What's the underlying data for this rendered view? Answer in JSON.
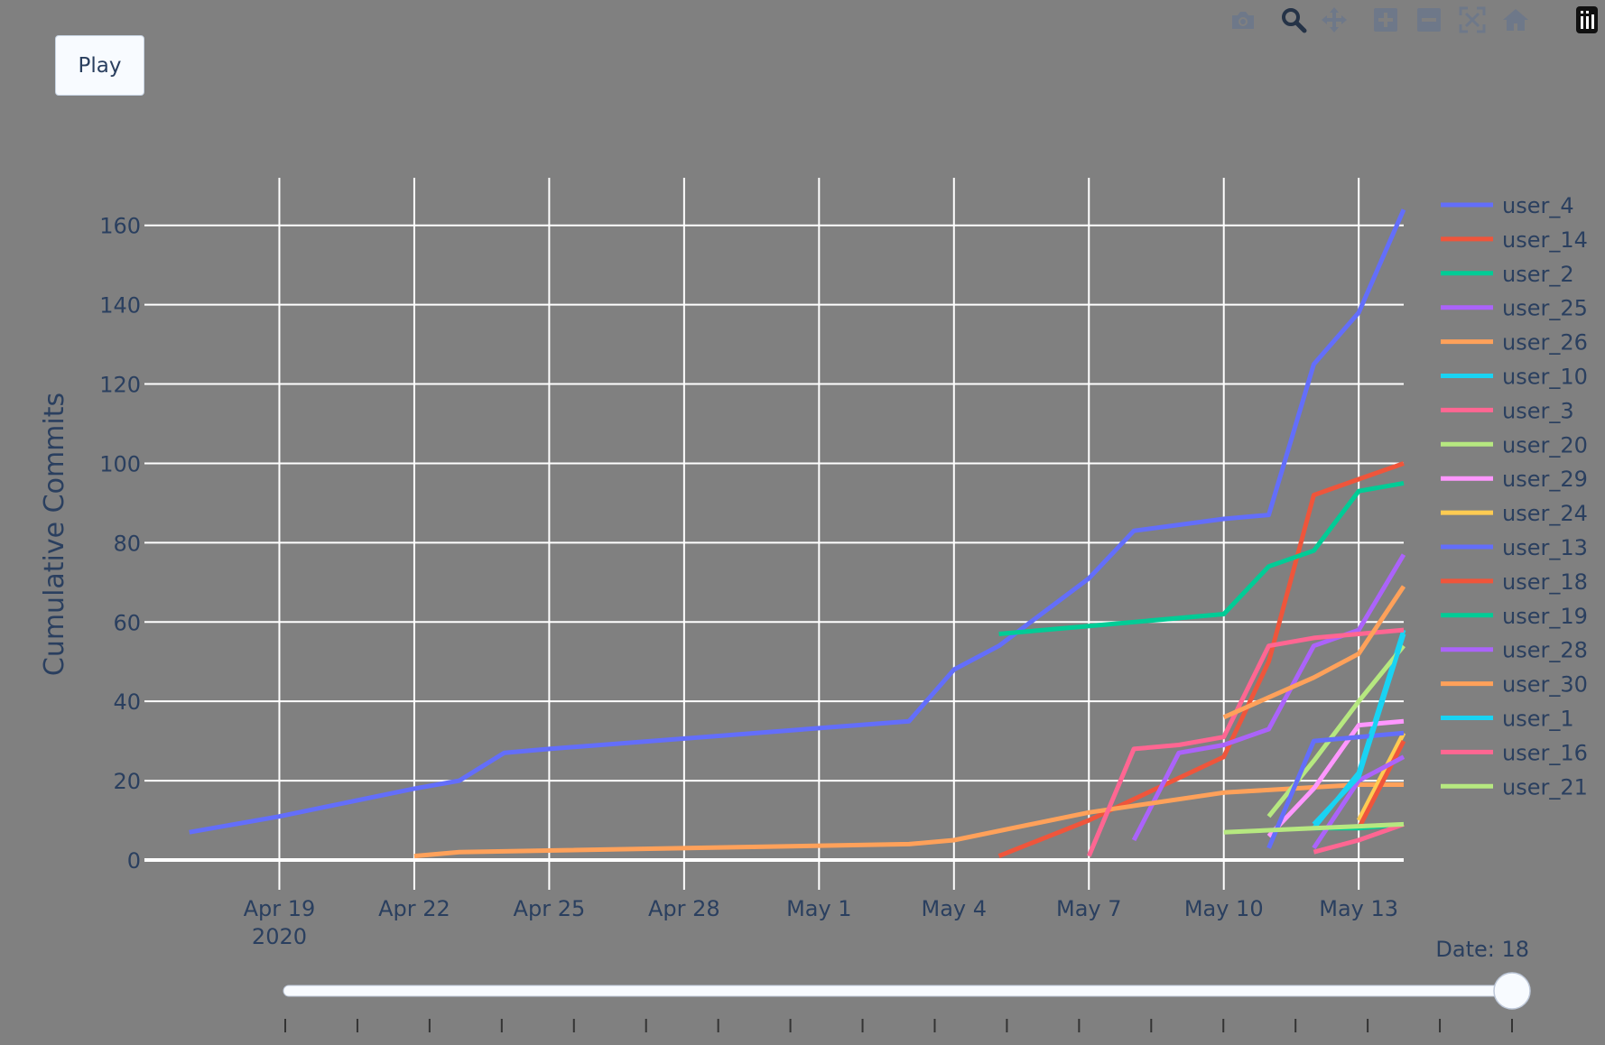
{
  "play_button": {
    "label": "Play"
  },
  "modebar": {
    "icons": [
      "camera-icon",
      "zoom-icon",
      "pan-icon",
      "zoom-in-icon",
      "zoom-out-icon",
      "autoscale-icon",
      "reset-axes-icon",
      "plotly-logo-icon"
    ]
  },
  "slider": {
    "current_label": "Date: 18",
    "current_value": 18,
    "steps": [
      1,
      2,
      3,
      4,
      5,
      6,
      7,
      8,
      9,
      10,
      11,
      12,
      13,
      14,
      15,
      16,
      17,
      18
    ]
  },
  "chart_data": {
    "type": "line",
    "ylabel": "Cumulative Commits",
    "xlabel": "",
    "grid": true,
    "legend_position": "right",
    "xlim": [
      "2020-04-16",
      "2020-05-14"
    ],
    "ylim": [
      0,
      172
    ],
    "y_ticks": [
      0,
      20,
      40,
      60,
      80,
      100,
      120,
      140,
      160
    ],
    "x_ticks": [
      {
        "date": "2020-04-19",
        "label": "Apr 19",
        "sublabel": "2020"
      },
      {
        "date": "2020-04-22",
        "label": "Apr 22"
      },
      {
        "date": "2020-04-25",
        "label": "Apr 25"
      },
      {
        "date": "2020-04-28",
        "label": "Apr 28"
      },
      {
        "date": "2020-05-01",
        "label": "May 1"
      },
      {
        "date": "2020-05-04",
        "label": "May 4"
      },
      {
        "date": "2020-05-07",
        "label": "May 7"
      },
      {
        "date": "2020-05-10",
        "label": "May 10"
      },
      {
        "date": "2020-05-13",
        "label": "May 13"
      }
    ],
    "series": [
      {
        "name": "user_4",
        "color": "#636efa",
        "points": [
          [
            "2020-04-17",
            7
          ],
          [
            "2020-04-19",
            11
          ],
          [
            "2020-04-22",
            18
          ],
          [
            "2020-04-23",
            20
          ],
          [
            "2020-04-24",
            27
          ],
          [
            "2020-04-25",
            28
          ],
          [
            "2020-05-03",
            35
          ],
          [
            "2020-05-04",
            48
          ],
          [
            "2020-05-05",
            54
          ],
          [
            "2020-05-07",
            71
          ],
          [
            "2020-05-08",
            83
          ],
          [
            "2020-05-10",
            86
          ],
          [
            "2020-05-11",
            87
          ],
          [
            "2020-05-12",
            125
          ],
          [
            "2020-05-13",
            138
          ],
          [
            "2020-05-14",
            164
          ]
        ]
      },
      {
        "name": "user_14",
        "color": "#ef553b",
        "points": [
          [
            "2020-05-05",
            1
          ],
          [
            "2020-05-07",
            10
          ],
          [
            "2020-05-10",
            26
          ],
          [
            "2020-05-11",
            50
          ],
          [
            "2020-05-12",
            92
          ],
          [
            "2020-05-13",
            96
          ],
          [
            "2020-05-14",
            100
          ]
        ]
      },
      {
        "name": "user_2",
        "color": "#00cc96",
        "points": [
          [
            "2020-05-05",
            57
          ],
          [
            "2020-05-07",
            59
          ],
          [
            "2020-05-10",
            62
          ],
          [
            "2020-05-11",
            74
          ],
          [
            "2020-05-12",
            78
          ],
          [
            "2020-05-13",
            93
          ],
          [
            "2020-05-14",
            95
          ]
        ]
      },
      {
        "name": "user_25",
        "color": "#ab63fa",
        "points": [
          [
            "2020-05-08",
            5
          ],
          [
            "2020-05-09",
            27
          ],
          [
            "2020-05-10",
            29
          ],
          [
            "2020-05-11",
            33
          ],
          [
            "2020-05-12",
            54
          ],
          [
            "2020-05-13",
            58
          ],
          [
            "2020-05-14",
            77
          ]
        ]
      },
      {
        "name": "user_26",
        "color": "#ffa15a",
        "points": [
          [
            "2020-04-22",
            1
          ],
          [
            "2020-04-23",
            2
          ],
          [
            "2020-05-03",
            4
          ],
          [
            "2020-05-04",
            5
          ],
          [
            "2020-05-07",
            12
          ],
          [
            "2020-05-10",
            17
          ],
          [
            "2020-05-13",
            19
          ],
          [
            "2020-05-14",
            19
          ]
        ]
      },
      {
        "name": "user_10",
        "color": "#19d3f3",
        "points": [
          [
            "2020-05-12",
            8
          ],
          [
            "2020-05-13",
            22
          ],
          [
            "2020-05-14",
            58
          ]
        ]
      },
      {
        "name": "user_3",
        "color": "#ff6692",
        "points": [
          [
            "2020-05-07",
            1
          ],
          [
            "2020-05-08",
            28
          ],
          [
            "2020-05-09",
            29
          ],
          [
            "2020-05-10",
            31
          ],
          [
            "2020-05-11",
            54
          ],
          [
            "2020-05-12",
            56
          ],
          [
            "2020-05-13",
            57
          ],
          [
            "2020-05-14",
            58
          ]
        ]
      },
      {
        "name": "user_20",
        "color": "#b6e880",
        "points": [
          [
            "2020-05-11",
            11
          ],
          [
            "2020-05-12",
            25
          ],
          [
            "2020-05-13",
            40
          ],
          [
            "2020-05-14",
            54
          ]
        ]
      },
      {
        "name": "user_29",
        "color": "#ff97ff",
        "points": [
          [
            "2020-05-11",
            6
          ],
          [
            "2020-05-12",
            18
          ],
          [
            "2020-05-13",
            34
          ],
          [
            "2020-05-14",
            35
          ]
        ]
      },
      {
        "name": "user_24",
        "color": "#fecb52",
        "points": [
          [
            "2020-05-13",
            10
          ],
          [
            "2020-05-14",
            32
          ]
        ]
      },
      {
        "name": "user_13",
        "color": "#636efa",
        "points": [
          [
            "2020-05-11",
            3
          ],
          [
            "2020-05-12",
            30
          ],
          [
            "2020-05-13",
            31
          ],
          [
            "2020-05-14",
            32
          ]
        ]
      },
      {
        "name": "user_18",
        "color": "#ef553b",
        "points": [
          [
            "2020-05-13",
            8
          ],
          [
            "2020-05-14",
            30
          ]
        ]
      },
      {
        "name": "user_19",
        "color": "#00cc96",
        "points": [
          [
            "2020-05-12",
            8
          ],
          [
            "2020-05-13",
            8
          ],
          [
            "2020-05-14",
            9
          ]
        ]
      },
      {
        "name": "user_28",
        "color": "#ab63fa",
        "points": [
          [
            "2020-05-12",
            3
          ],
          [
            "2020-05-13",
            20
          ],
          [
            "2020-05-14",
            26
          ]
        ]
      },
      {
        "name": "user_30",
        "color": "#ffa15a",
        "points": [
          [
            "2020-05-10",
            36
          ],
          [
            "2020-05-11",
            41
          ],
          [
            "2020-05-12",
            46
          ],
          [
            "2020-05-13",
            52
          ],
          [
            "2020-05-14",
            69
          ]
        ]
      },
      {
        "name": "user_1",
        "color": "#19d3f3",
        "points": [
          [
            "2020-05-12",
            9
          ],
          [
            "2020-05-13",
            21
          ],
          [
            "2020-05-14",
            57
          ]
        ]
      },
      {
        "name": "user_16",
        "color": "#ff6692",
        "points": [
          [
            "2020-05-12",
            2
          ],
          [
            "2020-05-13",
            5
          ],
          [
            "2020-05-14",
            9
          ]
        ]
      },
      {
        "name": "user_21",
        "color": "#b6e880",
        "points": [
          [
            "2020-05-10",
            7
          ],
          [
            "2020-05-11",
            7.5
          ],
          [
            "2020-05-12",
            8
          ],
          [
            "2020-05-13",
            8.5
          ],
          [
            "2020-05-14",
            9
          ]
        ]
      }
    ]
  }
}
